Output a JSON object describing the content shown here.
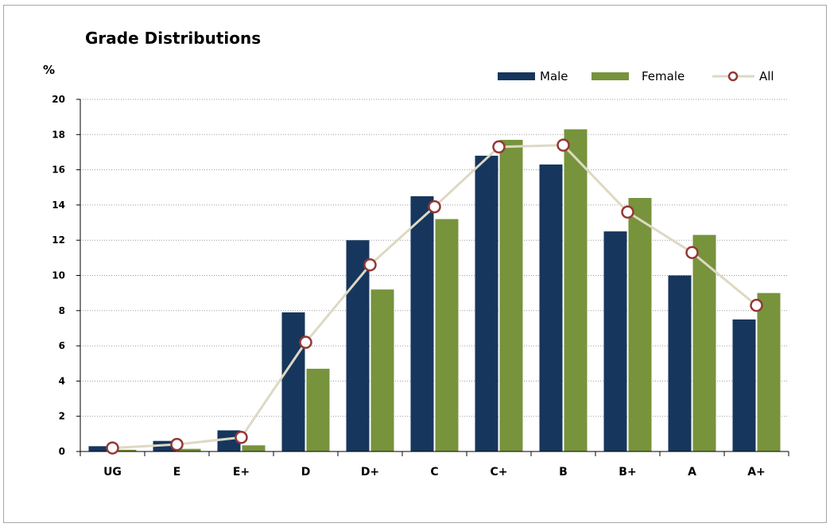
{
  "chart_data": {
    "type": "bar",
    "title": "Grade Distributions",
    "ylabel": "%",
    "xlabel": "",
    "ylim": [
      0,
      20
    ],
    "yticks": [
      0,
      2,
      4,
      6,
      8,
      10,
      12,
      14,
      16,
      18,
      20
    ],
    "grid": true,
    "legend_position": "top-right",
    "categories": [
      "UG",
      "E",
      "E+",
      "D",
      "D+",
      "C",
      "C+",
      "B",
      "B+",
      "A",
      "A+"
    ],
    "series": [
      {
        "name": "Male",
        "type": "bar",
        "color": "#17365d",
        "values": [
          0.3,
          0.6,
          1.2,
          7.9,
          12.0,
          14.5,
          16.8,
          16.3,
          12.5,
          10.0,
          7.5
        ]
      },
      {
        "name": "Female",
        "type": "bar",
        "color": "#77933c",
        "values": [
          0.1,
          0.15,
          0.35,
          4.7,
          9.2,
          13.2,
          17.7,
          18.3,
          14.4,
          12.3,
          9.0
        ]
      },
      {
        "name": "All",
        "type": "line",
        "color": "#ddd9c3",
        "marker_color": "#953735",
        "values": [
          0.2,
          0.4,
          0.8,
          6.2,
          10.6,
          13.9,
          17.3,
          17.4,
          13.6,
          11.3,
          8.3
        ]
      }
    ]
  }
}
